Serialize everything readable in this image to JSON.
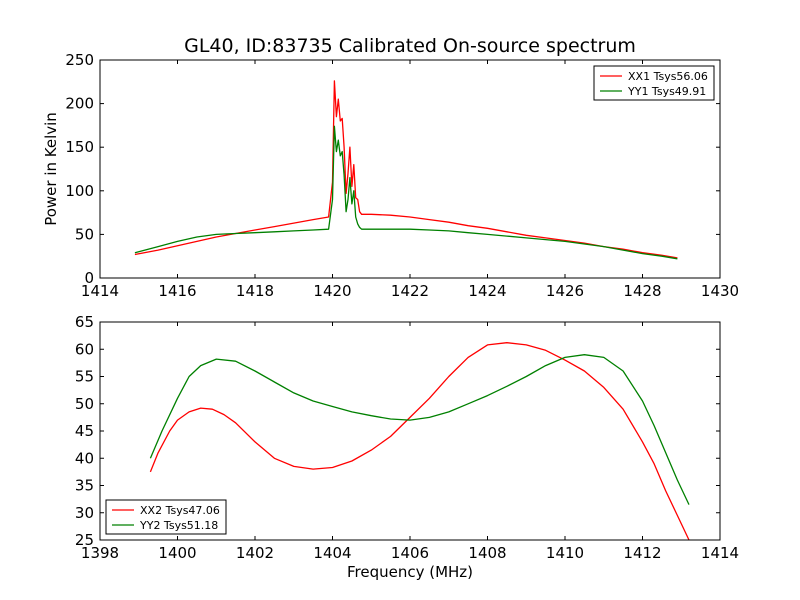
{
  "title": "GL40, ID:83735 Calibrated On-source spectrum",
  "colors": {
    "xx": "#ff0000",
    "yy": "#008000"
  },
  "chart_data": [
    {
      "type": "line",
      "ylabel": "Power in Kelvin",
      "xlabel": "",
      "xlim": [
        1414,
        1430
      ],
      "ylim": [
        0,
        250
      ],
      "xticks": [
        "1414",
        "1416",
        "1418",
        "1420",
        "1422",
        "1424",
        "1426",
        "1428",
        "1430"
      ],
      "yticks": [
        "0",
        "50",
        "100",
        "150",
        "200",
        "250"
      ],
      "grid": false,
      "legend_position": "top-right",
      "series": [
        {
          "name": "XX1 Tsys56.06",
          "color": "#ff0000",
          "x": [
            1414.9,
            1415.5,
            1416.0,
            1416.5,
            1417.0,
            1417.5,
            1418.0,
            1418.5,
            1419.0,
            1419.5,
            1419.9,
            1420.0,
            1420.05,
            1420.1,
            1420.15,
            1420.2,
            1420.25,
            1420.3,
            1420.35,
            1420.4,
            1420.45,
            1420.5,
            1420.55,
            1420.6,
            1420.65,
            1420.7,
            1420.75,
            1421.0,
            1421.5,
            1422.0,
            1422.5,
            1423.0,
            1423.5,
            1424.0,
            1424.5,
            1425.0,
            1425.5,
            1426.0,
            1426.5,
            1427.0,
            1427.5,
            1428.0,
            1428.5,
            1428.9
          ],
          "y": [
            27,
            32,
            37,
            42,
            47,
            51,
            55,
            59,
            63,
            67,
            70,
            110,
            226,
            185,
            205,
            180,
            183,
            150,
            97,
            120,
            150,
            105,
            130,
            92,
            90,
            76,
            73,
            73,
            72,
            70,
            67,
            64,
            60,
            57,
            53,
            49,
            46,
            43,
            40,
            36,
            33,
            29,
            26,
            23
          ]
        },
        {
          "name": "YY1 Tsys49.91",
          "color": "#008000",
          "x": [
            1414.9,
            1415.5,
            1416.0,
            1416.5,
            1417.0,
            1417.5,
            1418.0,
            1418.5,
            1419.0,
            1419.5,
            1419.9,
            1420.0,
            1420.05,
            1420.1,
            1420.15,
            1420.2,
            1420.25,
            1420.3,
            1420.35,
            1420.4,
            1420.45,
            1420.5,
            1420.55,
            1420.6,
            1420.65,
            1420.7,
            1420.75,
            1421.0,
            1421.5,
            1422.0,
            1422.5,
            1423.0,
            1423.5,
            1424.0,
            1424.5,
            1425.0,
            1425.5,
            1426.0,
            1426.5,
            1427.0,
            1427.5,
            1428.0,
            1428.5,
            1428.9
          ],
          "y": [
            29,
            36,
            42,
            47,
            50,
            51,
            52,
            53,
            54,
            55,
            56,
            90,
            174,
            145,
            158,
            140,
            145,
            118,
            76,
            90,
            115,
            85,
            100,
            70,
            62,
            58,
            56,
            56,
            56,
            56,
            55,
            54,
            52,
            50,
            48,
            46,
            44,
            42,
            39,
            36,
            32,
            28,
            25,
            22
          ]
        }
      ]
    },
    {
      "type": "line",
      "ylabel": "",
      "xlabel": "Frequency (MHz)",
      "xlim": [
        1398,
        1414
      ],
      "ylim": [
        25,
        65
      ],
      "xticks": [
        "1398",
        "1400",
        "1402",
        "1404",
        "1406",
        "1408",
        "1410",
        "1412",
        "1414"
      ],
      "yticks": [
        "25",
        "30",
        "35",
        "40",
        "45",
        "50",
        "55",
        "60",
        "65"
      ],
      "grid": false,
      "legend_position": "bottom-left",
      "series": [
        {
          "name": "XX2 Tsys47.06",
          "color": "#ff0000",
          "x": [
            1399.3,
            1399.5,
            1399.8,
            1400.0,
            1400.3,
            1400.6,
            1400.9,
            1401.2,
            1401.5,
            1402.0,
            1402.5,
            1403.0,
            1403.5,
            1404.0,
            1404.5,
            1405.0,
            1405.5,
            1406.0,
            1406.5,
            1407.0,
            1407.5,
            1408.0,
            1408.5,
            1409.0,
            1409.5,
            1410.0,
            1410.5,
            1411.0,
            1411.5,
            1412.0,
            1412.3,
            1412.6,
            1412.9,
            1413.2
          ],
          "y": [
            37.5,
            41,
            45,
            47,
            48.5,
            49.2,
            49,
            48,
            46.5,
            43,
            40,
            38.5,
            38,
            38.3,
            39.5,
            41.5,
            44,
            47.5,
            51,
            55,
            58.5,
            60.8,
            61.2,
            60.8,
            59.8,
            58,
            56,
            53,
            49,
            43,
            39,
            34,
            29.5,
            25
          ]
        },
        {
          "name": "YY2 Tsys51.18",
          "color": "#008000",
          "x": [
            1399.3,
            1399.6,
            1400.0,
            1400.3,
            1400.6,
            1401.0,
            1401.5,
            1402.0,
            1402.5,
            1403.0,
            1403.5,
            1404.0,
            1404.5,
            1405.0,
            1405.5,
            1406.0,
            1406.5,
            1407.0,
            1407.5,
            1408.0,
            1408.5,
            1409.0,
            1409.5,
            1410.0,
            1410.5,
            1411.0,
            1411.5,
            1412.0,
            1412.3,
            1412.6,
            1412.9,
            1413.2
          ],
          "y": [
            40,
            45,
            51,
            55,
            57,
            58.2,
            57.8,
            56,
            54,
            52,
            50.5,
            49.5,
            48.5,
            47.8,
            47.2,
            47,
            47.5,
            48.5,
            50,
            51.5,
            53.2,
            55,
            57,
            58.5,
            59,
            58.5,
            56,
            50.5,
            46,
            41,
            36,
            31.5
          ]
        }
      ]
    }
  ]
}
